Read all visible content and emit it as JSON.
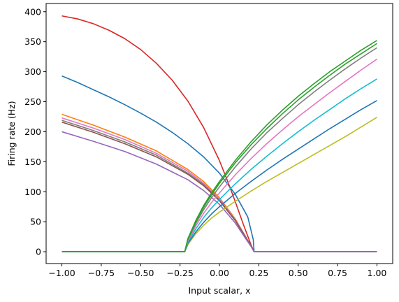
{
  "chart_data": {
    "type": "line",
    "title": "",
    "xlabel": "Input scalar, x",
    "ylabel": "Firing rate (Hz)",
    "xlim": [
      -1.1,
      1.1
    ],
    "ylim": [
      -19.7,
      413.7
    ],
    "xticks": [
      -1.0,
      -0.75,
      -0.5,
      -0.25,
      0.0,
      0.25,
      0.5,
      0.75,
      1.0
    ],
    "xtick_labels": [
      "−1.00",
      "−0.75",
      "−0.50",
      "−0.25",
      "0.00",
      "0.25",
      "0.50",
      "0.75",
      "1.00"
    ],
    "yticks": [
      0,
      50,
      100,
      150,
      200,
      250,
      300,
      350,
      400
    ],
    "ytick_labels": [
      "0",
      "50",
      "100",
      "150",
      "200",
      "250",
      "300",
      "350",
      "400"
    ],
    "grid": false,
    "legend": "none",
    "series": [
      {
        "color": "#1f77b4",
        "x": [
          -1.0,
          -0.9,
          -0.8,
          -0.7,
          -0.6,
          -0.5,
          -0.4,
          -0.3,
          -0.2,
          -0.1,
          0.0,
          0.1,
          0.18,
          0.215,
          0.22,
          0.3,
          0.4,
          0.5,
          0.6,
          0.7,
          0.8,
          0.9,
          1.0
        ],
        "y": [
          293,
          282,
          270,
          258,
          245,
          231,
          216,
          199,
          180,
          158,
          131,
          96,
          58,
          20,
          0,
          0,
          0,
          0,
          0,
          0,
          0,
          0,
          0
        ]
      },
      {
        "color": "#d62728",
        "x": [
          -1.0,
          -0.9,
          -0.8,
          -0.7,
          -0.6,
          -0.5,
          -0.4,
          -0.3,
          -0.2,
          -0.1,
          0.0,
          0.05,
          0.1,
          0.15,
          0.2,
          0.22,
          0.3,
          0.4,
          0.5,
          0.6,
          0.7,
          0.8,
          0.9,
          1.0
        ],
        "y": [
          393,
          388,
          380,
          369,
          355,
          337,
          314,
          286,
          251,
          207,
          152,
          119,
          84,
          47,
          12,
          0,
          0,
          0,
          0,
          0,
          0,
          0,
          0,
          0
        ]
      },
      {
        "color": "#ff7f0e",
        "x": [
          -1.0,
          -0.8,
          -0.6,
          -0.4,
          -0.2,
          -0.1,
          0.0,
          0.1,
          0.2,
          0.22,
          0.4,
          0.6,
          0.8,
          1.0
        ],
        "y": [
          229,
          211,
          191,
          168,
          137,
          117,
          90,
          55,
          10,
          0,
          0,
          0,
          0,
          0
        ]
      },
      {
        "color": "#e377c2",
        "x": [
          -1.0,
          -0.8,
          -0.6,
          -0.4,
          -0.2,
          -0.1,
          0.0,
          0.1,
          0.2,
          0.22,
          0.4,
          0.6,
          0.8,
          1.0
        ],
        "y": [
          223,
          206,
          187,
          164,
          134,
          114,
          88,
          54,
          10,
          0,
          0,
          0,
          0,
          0
        ]
      },
      {
        "color": "#7f7f7f",
        "x": [
          -1.0,
          -0.8,
          -0.6,
          -0.4,
          -0.2,
          -0.1,
          0.0,
          0.1,
          0.2,
          0.22,
          0.4,
          0.6,
          0.8,
          1.0
        ],
        "y": [
          219,
          202,
          183,
          161,
          131,
          112,
          86,
          53,
          10,
          0,
          0,
          0,
          0,
          0
        ]
      },
      {
        "color": "#8c564b",
        "x": [
          -1.0,
          -0.8,
          -0.6,
          -0.4,
          -0.2,
          -0.1,
          0.0,
          0.1,
          0.2,
          0.22,
          0.4,
          0.6,
          0.8,
          1.0
        ],
        "y": [
          216,
          199,
          180,
          158,
          129,
          110,
          85,
          52,
          10,
          0,
          0,
          0,
          0,
          0
        ]
      },
      {
        "color": "#9467bd",
        "x": [
          -1.0,
          -0.8,
          -0.6,
          -0.4,
          -0.2,
          -0.1,
          0.0,
          0.1,
          0.2,
          0.22,
          0.4,
          0.6,
          0.8,
          1.0
        ],
        "y": [
          200,
          184,
          167,
          146,
          120,
          102,
          79,
          48,
          9,
          0,
          0,
          0,
          0,
          0
        ]
      },
      {
        "color": "#bcbd22",
        "x": [
          -1.0,
          -0.6,
          -0.22,
          -0.2,
          -0.15,
          -0.1,
          -0.05,
          0.0,
          0.1,
          0.2,
          0.3,
          0.4,
          0.5,
          0.6,
          0.7,
          0.8,
          0.9,
          1.0
        ],
        "y": [
          0,
          0,
          0,
          12,
          30,
          44,
          56,
          66,
          84,
          101,
          117,
          132,
          147,
          162,
          177,
          192,
          208,
          224
        ]
      },
      {
        "color": "#1f77b4",
        "x": [
          -1.0,
          -0.6,
          -0.22,
          -0.2,
          -0.15,
          -0.1,
          -0.05,
          0.0,
          0.1,
          0.2,
          0.3,
          0.4,
          0.5,
          0.6,
          0.7,
          0.8,
          0.9,
          1.0
        ],
        "y": [
          0,
          0,
          0,
          14,
          33,
          49,
          63,
          75,
          97,
          117,
          136,
          154,
          171,
          188,
          205,
          221,
          237,
          252
        ]
      },
      {
        "color": "#17becf",
        "x": [
          -1.0,
          -0.6,
          -0.22,
          -0.2,
          -0.15,
          -0.1,
          -0.05,
          0.0,
          0.1,
          0.2,
          0.3,
          0.4,
          0.5,
          0.6,
          0.7,
          0.8,
          0.9,
          1.0
        ],
        "y": [
          0,
          0,
          0,
          16,
          38,
          57,
          73,
          87,
          113,
          137,
          159,
          180,
          200,
          219,
          237,
          255,
          272,
          288
        ]
      },
      {
        "color": "#e377c2",
        "x": [
          -1.0,
          -0.6,
          -0.22,
          -0.2,
          -0.15,
          -0.1,
          -0.05,
          0.0,
          0.1,
          0.2,
          0.3,
          0.4,
          0.5,
          0.6,
          0.7,
          0.8,
          0.9,
          1.0
        ],
        "y": [
          0,
          0,
          0,
          18,
          43,
          64,
          82,
          98,
          128,
          155,
          180,
          203,
          225,
          245,
          265,
          284,
          303,
          321
        ]
      },
      {
        "color": "#7f7f7f",
        "x": [
          -1.0,
          -0.6,
          -0.22,
          -0.2,
          -0.15,
          -0.1,
          -0.05,
          0.0,
          0.1,
          0.2,
          0.3,
          0.4,
          0.5,
          0.6,
          0.7,
          0.8,
          0.9,
          1.0
        ],
        "y": [
          0,
          0,
          0,
          20,
          47,
          70,
          90,
          108,
          141,
          171,
          198,
          222,
          245,
          266,
          286,
          305,
          323,
          340
        ]
      },
      {
        "color": "#2ca02c",
        "x": [
          -1.0,
          -0.6,
          -0.22,
          -0.2,
          -0.15,
          -0.1,
          -0.05,
          0.0,
          0.1,
          0.2,
          0.3,
          0.4,
          0.5,
          0.6,
          0.7,
          0.8,
          0.9,
          1.0
        ],
        "y": [
          0,
          0,
          0,
          21,
          50,
          74,
          95,
          114,
          148,
          178,
          205,
          230,
          253,
          274,
          294,
          313,
          330,
          347
        ]
      },
      {
        "color": "#2ca02c",
        "x": [
          -1.0,
          -0.6,
          -0.22,
          -0.2,
          -0.15,
          -0.1,
          -0.05,
          0.0,
          0.1,
          0.2,
          0.3,
          0.4,
          0.5,
          0.6,
          0.7,
          0.8,
          0.9,
          1.0
        ],
        "y": [
          0,
          0,
          0,
          22,
          52,
          77,
          98,
          117,
          152,
          183,
          211,
          236,
          259,
          280,
          300,
          318,
          336,
          352
        ]
      }
    ]
  }
}
